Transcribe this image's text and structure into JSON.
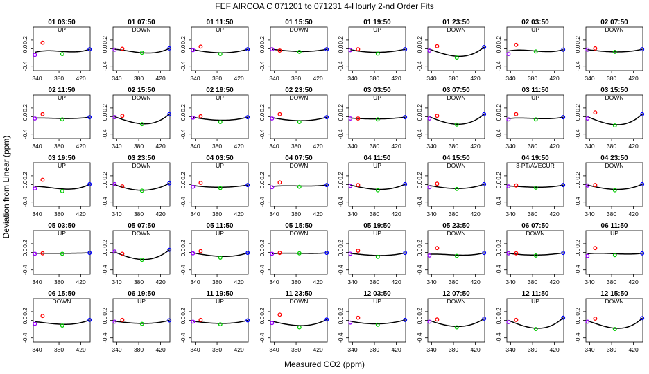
{
  "title": "FEF   AIRCOA C   071201 to 071231   4-Hourly 2-nd Order Fits",
  "xlabel": "Measured CO2 (ppm)",
  "ylabel": "Deviation from Linear (ppm)",
  "chart_data": {
    "type": "scatter",
    "title": "FEF   AIRCOA C   071201 to 071231   4-Hourly 2-nd Order Fits",
    "xlabel": "Measured CO2 (ppm)",
    "ylabel": "Deviation from Linear (ppm)",
    "xlim": [
      333,
      437
    ],
    "ylim": [
      -0.5,
      0.5
    ],
    "xticks": [
      "340",
      "380",
      "420"
    ],
    "yticks": [
      "-0.4",
      "0.0",
      "0.2"
    ],
    "point_colors": [
      "#9a00ff",
      "#ff0000",
      "#00cc00",
      "#0000ff"
    ],
    "fit_color": "#000000",
    "standard_x": [
      336,
      350,
      386,
      436
    ],
    "panels": [
      {
        "time": "01 03:50",
        "mode": "UP",
        "y": [
          -0.14,
          0.14,
          -0.12,
          -0.01
        ],
        "fit": [
          -0.08,
          -0.05,
          -0.06,
          -0.01
        ]
      },
      {
        "time": "01 07:50",
        "mode": "DOWN",
        "y": [
          -0.02,
          0.0,
          -0.09,
          0.01
        ],
        "fit": [
          -0.01,
          -0.03,
          -0.09,
          0.01
        ]
      },
      {
        "time": "01 11:50",
        "mode": "UP",
        "y": [
          -0.03,
          0.05,
          -0.12,
          -0.01
        ],
        "fit": [
          -0.02,
          -0.05,
          -0.09,
          -0.01
        ]
      },
      {
        "time": "01 15:50",
        "mode": "DOWN",
        "y": [
          -0.01,
          -0.04,
          -0.07,
          -0.01
        ],
        "fit": [
          -0.01,
          -0.03,
          -0.06,
          -0.01
        ]
      },
      {
        "time": "01 19:50",
        "mode": "UP",
        "y": [
          -0.03,
          -0.01,
          -0.11,
          -0.01
        ],
        "fit": [
          -0.02,
          -0.05,
          -0.08,
          -0.01
        ]
      },
      {
        "time": "01 23:50",
        "mode": "DOWN",
        "y": [
          -0.04,
          0.06,
          -0.2,
          0.04
        ],
        "fit": [
          -0.01,
          -0.07,
          -0.17,
          0.04
        ]
      },
      {
        "time": "02 03:50",
        "mode": "UP",
        "y": [
          -0.12,
          0.09,
          -0.06,
          -0.02
        ],
        "fit": [
          -0.05,
          -0.03,
          -0.05,
          -0.02
        ]
      },
      {
        "time": "02 07:50",
        "mode": "DOWN",
        "y": [
          -0.02,
          0.01,
          -0.07,
          -0.01
        ],
        "fit": [
          -0.02,
          -0.04,
          -0.07,
          -0.01
        ]
      },
      {
        "time": "02 11:50",
        "mode": "UP",
        "y": [
          -0.04,
          0.06,
          -0.06,
          -0.01
        ],
        "fit": [
          -0.03,
          -0.03,
          -0.04,
          -0.01
        ]
      },
      {
        "time": "02 15:50",
        "mode": "DOWN",
        "y": [
          -0.01,
          0.02,
          -0.17,
          0.06
        ],
        "fit": [
          0.0,
          -0.06,
          -0.16,
          0.06
        ]
      },
      {
        "time": "02 19:50",
        "mode": "UP",
        "y": [
          -0.02,
          0.01,
          -0.12,
          -0.01
        ],
        "fit": [
          -0.01,
          -0.04,
          -0.08,
          -0.01
        ]
      },
      {
        "time": "02 23:50",
        "mode": "DOWN",
        "y": [
          -0.04,
          0.06,
          -0.12,
          -0.01
        ],
        "fit": [
          -0.02,
          -0.05,
          -0.09,
          -0.01
        ]
      },
      {
        "time": "03 03:50",
        "mode": "UP",
        "y": [
          -0.04,
          -0.04,
          -0.06,
          -0.01
        ],
        "fit": [
          -0.03,
          -0.04,
          -0.05,
          -0.01
        ]
      },
      {
        "time": "03 07:50",
        "mode": "DOWN",
        "y": [
          -0.04,
          0.02,
          -0.18,
          0.06
        ],
        "fit": [
          0.0,
          -0.07,
          -0.17,
          0.06
        ]
      },
      {
        "time": "03 11:50",
        "mode": "UP",
        "y": [
          -0.06,
          0.06,
          -0.06,
          -0.01
        ],
        "fit": [
          -0.04,
          -0.03,
          -0.04,
          -0.01
        ]
      },
      {
        "time": "03 15:50",
        "mode": "DOWN",
        "y": [
          -0.04,
          0.1,
          -0.2,
          0.06
        ],
        "fit": [
          0.0,
          -0.07,
          -0.18,
          0.06
        ]
      },
      {
        "time": "03 19:50",
        "mode": "UP",
        "y": [
          -0.09,
          0.11,
          -0.15,
          0.01
        ],
        "fit": [
          -0.04,
          -0.05,
          -0.1,
          0.01
        ]
      },
      {
        "time": "03 23:50",
        "mode": "DOWN",
        "y": [
          0.01,
          -0.04,
          -0.14,
          0.03
        ],
        "fit": [
          0.0,
          -0.06,
          -0.13,
          0.03
        ]
      },
      {
        "time": "04 03:50",
        "mode": "UP",
        "y": [
          -0.05,
          0.04,
          -0.08,
          -0.01
        ],
        "fit": [
          -0.02,
          -0.04,
          -0.06,
          -0.01
        ]
      },
      {
        "time": "04 07:50",
        "mode": "DOWN",
        "y": [
          -0.06,
          0.05,
          -0.05,
          -0.01
        ],
        "fit": [
          -0.04,
          -0.03,
          -0.03,
          -0.01
        ]
      },
      {
        "time": "04 11:50",
        "mode": "UP",
        "y": [
          -0.03,
          -0.01,
          -0.13,
          0.01
        ],
        "fit": [
          -0.01,
          -0.05,
          -0.11,
          0.01
        ]
      },
      {
        "time": "04 15:50",
        "mode": "DOWN",
        "y": [
          -0.06,
          0.02,
          -0.1,
          0.01
        ],
        "fit": [
          -0.02,
          -0.05,
          -0.09,
          0.01
        ]
      },
      {
        "time": "04 19:50",
        "mode": "3-PT/AVECUR",
        "y": [
          -0.04,
          -0.02,
          -0.07,
          -0.01
        ],
        "fit": [
          -0.03,
          -0.04,
          -0.06,
          -0.01
        ]
      },
      {
        "time": "04 23:50",
        "mode": "DOWN",
        "y": [
          -0.02,
          -0.01,
          -0.13,
          0.01
        ],
        "fit": [
          -0.01,
          -0.05,
          -0.11,
          0.01
        ]
      },
      {
        "time": "05 03:50",
        "mode": "UP",
        "y": [
          -0.03,
          -0.02,
          -0.03,
          -0.01
        ],
        "fit": [
          -0.02,
          -0.02,
          -0.02,
          -0.01
        ]
      },
      {
        "time": "05 07:50",
        "mode": "DOWN",
        "y": [
          0.02,
          -0.03,
          -0.17,
          0.06
        ],
        "fit": [
          0.01,
          -0.06,
          -0.16,
          0.06
        ]
      },
      {
        "time": "05 11:50",
        "mode": "UP",
        "y": [
          -0.02,
          0.03,
          -0.12,
          -0.01
        ],
        "fit": [
          -0.01,
          -0.04,
          -0.09,
          -0.01
        ]
      },
      {
        "time": "05 15:50",
        "mode": "DOWN",
        "y": [
          -0.03,
          -0.01,
          -0.02,
          -0.01
        ],
        "fit": [
          -0.03,
          -0.02,
          -0.02,
          -0.01
        ]
      },
      {
        "time": "05 19:50",
        "mode": "UP",
        "y": [
          -0.03,
          0.04,
          -0.1,
          -0.01
        ],
        "fit": [
          -0.02,
          -0.04,
          -0.07,
          -0.01
        ]
      },
      {
        "time": "05 23:50",
        "mode": "DOWN",
        "y": [
          -0.07,
          0.1,
          -0.08,
          -0.01
        ],
        "fit": [
          -0.04,
          -0.04,
          -0.06,
          -0.01
        ]
      },
      {
        "time": "06 07:50",
        "mode": "DOWN",
        "y": [
          -0.02,
          -0.02,
          -0.07,
          -0.01
        ],
        "fit": [
          -0.02,
          -0.04,
          -0.06,
          -0.01
        ]
      },
      {
        "time": "06 11:50",
        "mode": "UP",
        "y": [
          -0.08,
          0.1,
          -0.06,
          -0.02
        ],
        "fit": [
          -0.03,
          -0.02,
          -0.03,
          -0.02
        ]
      },
      {
        "time": "06 15:50",
        "mode": "DOWN",
        "y": [
          -0.08,
          0.1,
          -0.12,
          0.01
        ],
        "fit": [
          -0.03,
          -0.05,
          -0.09,
          0.01
        ]
      },
      {
        "time": "06 19:50",
        "mode": "UP",
        "y": [
          -0.03,
          0.01,
          -0.08,
          0.0
        ],
        "fit": [
          -0.02,
          -0.04,
          -0.07,
          0.0
        ]
      },
      {
        "time": "11 19:50",
        "mode": "UP",
        "y": [
          -0.03,
          0.01,
          -0.09,
          0.0
        ],
        "fit": [
          -0.02,
          -0.04,
          -0.07,
          0.0
        ]
      },
      {
        "time": "11 23:50",
        "mode": "DOWN",
        "y": [
          -0.06,
          0.13,
          -0.16,
          0.02
        ],
        "fit": [
          -0.02,
          -0.06,
          -0.12,
          0.02
        ]
      },
      {
        "time": "12 03:50",
        "mode": "UP",
        "y": [
          -0.05,
          0.06,
          -0.1,
          0.01
        ],
        "fit": [
          -0.02,
          -0.05,
          -0.08,
          0.01
        ]
      },
      {
        "time": "12 07:50",
        "mode": "DOWN",
        "y": [
          -0.03,
          0.02,
          -0.16,
          0.04
        ],
        "fit": [
          0.0,
          -0.06,
          -0.14,
          0.04
        ]
      },
      {
        "time": "12 11:50",
        "mode": "UP",
        "y": [
          -0.04,
          0.01,
          -0.2,
          0.06
        ],
        "fit": [
          0.0,
          -0.07,
          -0.18,
          0.06
        ]
      },
      {
        "time": "12 15:50",
        "mode": "DOWN",
        "y": [
          -0.03,
          0.04,
          -0.2,
          0.05
        ],
        "fit": [
          -0.01,
          -0.07,
          -0.18,
          0.05
        ]
      }
    ]
  }
}
